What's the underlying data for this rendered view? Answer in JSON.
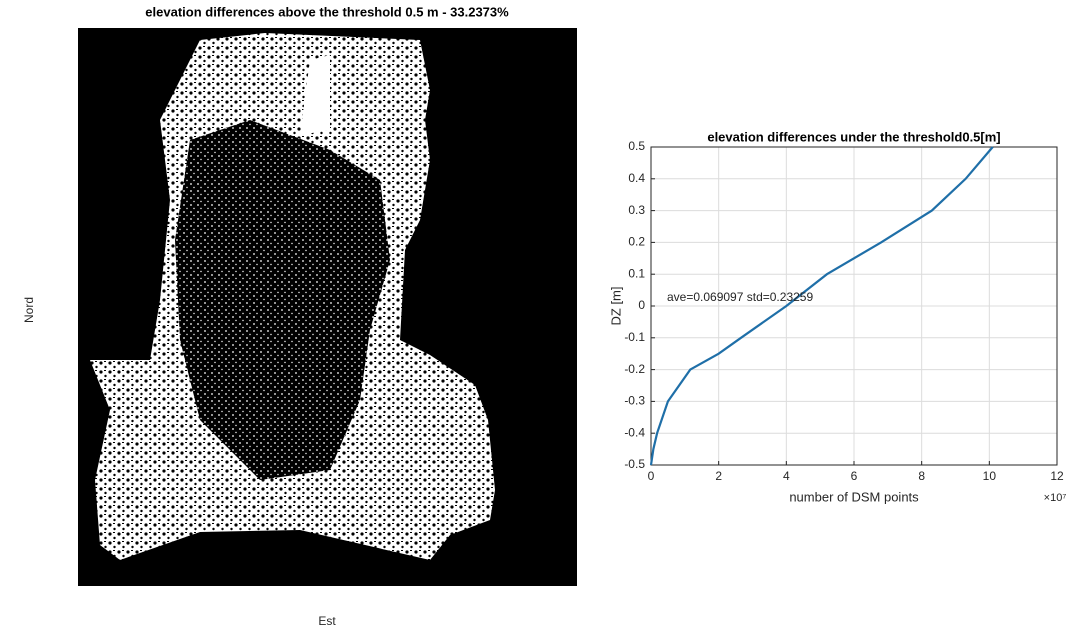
{
  "chart_data": [
    {
      "type": "image",
      "title": "elevation differences above the threshold 0.5 m - 33.2373%",
      "x_label": "Est",
      "y_label": "Nord"
    },
    {
      "type": "line",
      "title": "elevation differences under the threshold0.5[m]",
      "x_label": "number of DSM points",
      "y_label": "DZ [m]",
      "x_multiplier": "×10⁷",
      "annotation": "ave=0.069097  std=0.23259",
      "x": [
        0,
        0.07,
        0.18,
        0.5,
        1.16,
        2,
        2.66,
        4,
        5.2,
        6.8,
        8.3,
        9.3,
        10.1
      ],
      "series": [
        {
          "name": "DZ",
          "color": "#1f6fa8",
          "values": [
            -0.5,
            -0.45,
            -0.4,
            -0.3,
            -0.2,
            -0.15,
            -0.1,
            0,
            0.1,
            0.2,
            0.3,
            0.4,
            0.5
          ]
        }
      ],
      "xlim": [
        0,
        12
      ],
      "xticks": [
        0,
        2,
        4,
        6,
        8,
        10,
        12
      ],
      "ylim": [
        -0.5,
        0.5
      ],
      "yticks": [
        -0.5,
        -0.4,
        -0.3,
        -0.2,
        -0.1,
        0,
        0.1,
        0.2,
        0.3,
        0.4,
        0.5
      ],
      "grid": true
    }
  ]
}
